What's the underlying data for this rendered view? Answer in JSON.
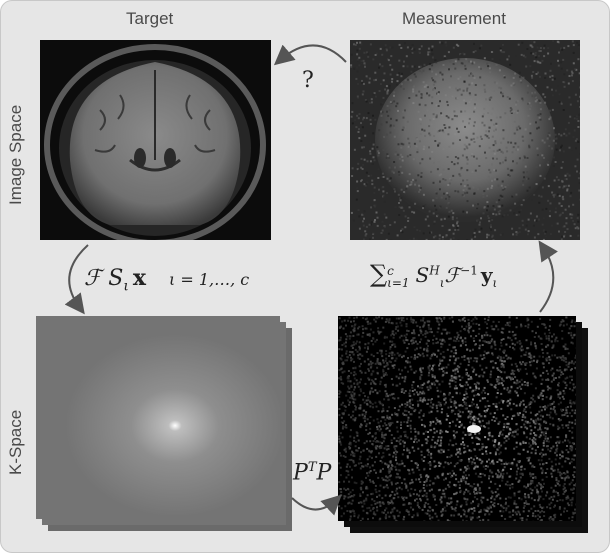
{
  "columns": {
    "target": "Target",
    "measurement": "Measurement"
  },
  "rows": {
    "image_space": "Image Space",
    "k_space": "K-Space"
  },
  "annotations": {
    "question": "?",
    "forward_op": "ℱ S",
    "forward_sub": "ι",
    "forward_x": "x",
    "forward_range": "ι = 1,…, c",
    "sum_symbol": "∑",
    "sum_upper": "c",
    "sum_lower": "ι=1",
    "adjoint_S": "S",
    "adjoint_sup": "H",
    "adjoint_sub": "ι",
    "adjoint_F": "ℱ",
    "adjoint_inv": "−1",
    "adjoint_y": "y",
    "adjoint_y_sub": "ι",
    "mask_P": "P",
    "mask_T": "T",
    "mask_P2": "P"
  },
  "colors": {
    "background": "#e6e6e6",
    "arrow": "#555555"
  }
}
